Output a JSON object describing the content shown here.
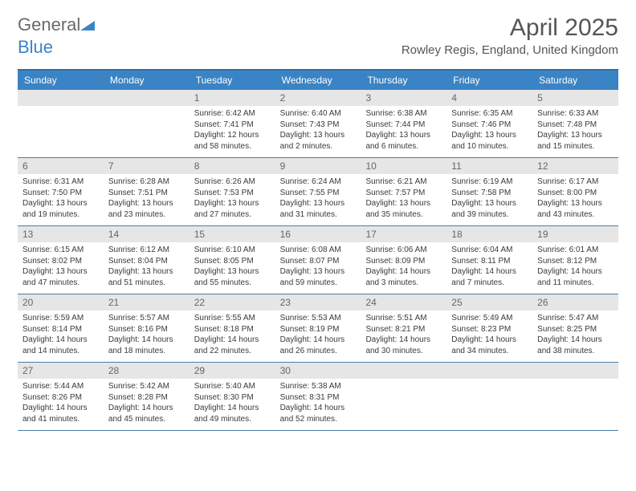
{
  "brand": {
    "part1": "General",
    "part2": "Blue"
  },
  "title": "April 2025",
  "location": "Rowley Regis, England, United Kingdom",
  "colors": {
    "header_bg": "#3a83c4",
    "header_text": "#ffffff",
    "border": "#2d6ea8",
    "daynum_bg": "#e6e6e6",
    "daynum_text": "#666666",
    "body_text": "#3a3a3a",
    "title_text": "#555555"
  },
  "days_of_week": [
    "Sunday",
    "Monday",
    "Tuesday",
    "Wednesday",
    "Thursday",
    "Friday",
    "Saturday"
  ],
  "weeks": [
    [
      null,
      null,
      {
        "n": "1",
        "sr": "Sunrise: 6:42 AM",
        "ss": "Sunset: 7:41 PM",
        "dl": "Daylight: 12 hours and 58 minutes."
      },
      {
        "n": "2",
        "sr": "Sunrise: 6:40 AM",
        "ss": "Sunset: 7:43 PM",
        "dl": "Daylight: 13 hours and 2 minutes."
      },
      {
        "n": "3",
        "sr": "Sunrise: 6:38 AM",
        "ss": "Sunset: 7:44 PM",
        "dl": "Daylight: 13 hours and 6 minutes."
      },
      {
        "n": "4",
        "sr": "Sunrise: 6:35 AM",
        "ss": "Sunset: 7:46 PM",
        "dl": "Daylight: 13 hours and 10 minutes."
      },
      {
        "n": "5",
        "sr": "Sunrise: 6:33 AM",
        "ss": "Sunset: 7:48 PM",
        "dl": "Daylight: 13 hours and 15 minutes."
      }
    ],
    [
      {
        "n": "6",
        "sr": "Sunrise: 6:31 AM",
        "ss": "Sunset: 7:50 PM",
        "dl": "Daylight: 13 hours and 19 minutes."
      },
      {
        "n": "7",
        "sr": "Sunrise: 6:28 AM",
        "ss": "Sunset: 7:51 PM",
        "dl": "Daylight: 13 hours and 23 minutes."
      },
      {
        "n": "8",
        "sr": "Sunrise: 6:26 AM",
        "ss": "Sunset: 7:53 PM",
        "dl": "Daylight: 13 hours and 27 minutes."
      },
      {
        "n": "9",
        "sr": "Sunrise: 6:24 AM",
        "ss": "Sunset: 7:55 PM",
        "dl": "Daylight: 13 hours and 31 minutes."
      },
      {
        "n": "10",
        "sr": "Sunrise: 6:21 AM",
        "ss": "Sunset: 7:57 PM",
        "dl": "Daylight: 13 hours and 35 minutes."
      },
      {
        "n": "11",
        "sr": "Sunrise: 6:19 AM",
        "ss": "Sunset: 7:58 PM",
        "dl": "Daylight: 13 hours and 39 minutes."
      },
      {
        "n": "12",
        "sr": "Sunrise: 6:17 AM",
        "ss": "Sunset: 8:00 PM",
        "dl": "Daylight: 13 hours and 43 minutes."
      }
    ],
    [
      {
        "n": "13",
        "sr": "Sunrise: 6:15 AM",
        "ss": "Sunset: 8:02 PM",
        "dl": "Daylight: 13 hours and 47 minutes."
      },
      {
        "n": "14",
        "sr": "Sunrise: 6:12 AM",
        "ss": "Sunset: 8:04 PM",
        "dl": "Daylight: 13 hours and 51 minutes."
      },
      {
        "n": "15",
        "sr": "Sunrise: 6:10 AM",
        "ss": "Sunset: 8:05 PM",
        "dl": "Daylight: 13 hours and 55 minutes."
      },
      {
        "n": "16",
        "sr": "Sunrise: 6:08 AM",
        "ss": "Sunset: 8:07 PM",
        "dl": "Daylight: 13 hours and 59 minutes."
      },
      {
        "n": "17",
        "sr": "Sunrise: 6:06 AM",
        "ss": "Sunset: 8:09 PM",
        "dl": "Daylight: 14 hours and 3 minutes."
      },
      {
        "n": "18",
        "sr": "Sunrise: 6:04 AM",
        "ss": "Sunset: 8:11 PM",
        "dl": "Daylight: 14 hours and 7 minutes."
      },
      {
        "n": "19",
        "sr": "Sunrise: 6:01 AM",
        "ss": "Sunset: 8:12 PM",
        "dl": "Daylight: 14 hours and 11 minutes."
      }
    ],
    [
      {
        "n": "20",
        "sr": "Sunrise: 5:59 AM",
        "ss": "Sunset: 8:14 PM",
        "dl": "Daylight: 14 hours and 14 minutes."
      },
      {
        "n": "21",
        "sr": "Sunrise: 5:57 AM",
        "ss": "Sunset: 8:16 PM",
        "dl": "Daylight: 14 hours and 18 minutes."
      },
      {
        "n": "22",
        "sr": "Sunrise: 5:55 AM",
        "ss": "Sunset: 8:18 PM",
        "dl": "Daylight: 14 hours and 22 minutes."
      },
      {
        "n": "23",
        "sr": "Sunrise: 5:53 AM",
        "ss": "Sunset: 8:19 PM",
        "dl": "Daylight: 14 hours and 26 minutes."
      },
      {
        "n": "24",
        "sr": "Sunrise: 5:51 AM",
        "ss": "Sunset: 8:21 PM",
        "dl": "Daylight: 14 hours and 30 minutes."
      },
      {
        "n": "25",
        "sr": "Sunrise: 5:49 AM",
        "ss": "Sunset: 8:23 PM",
        "dl": "Daylight: 14 hours and 34 minutes."
      },
      {
        "n": "26",
        "sr": "Sunrise: 5:47 AM",
        "ss": "Sunset: 8:25 PM",
        "dl": "Daylight: 14 hours and 38 minutes."
      }
    ],
    [
      {
        "n": "27",
        "sr": "Sunrise: 5:44 AM",
        "ss": "Sunset: 8:26 PM",
        "dl": "Daylight: 14 hours and 41 minutes."
      },
      {
        "n": "28",
        "sr": "Sunrise: 5:42 AM",
        "ss": "Sunset: 8:28 PM",
        "dl": "Daylight: 14 hours and 45 minutes."
      },
      {
        "n": "29",
        "sr": "Sunrise: 5:40 AM",
        "ss": "Sunset: 8:30 PM",
        "dl": "Daylight: 14 hours and 49 minutes."
      },
      {
        "n": "30",
        "sr": "Sunrise: 5:38 AM",
        "ss": "Sunset: 8:31 PM",
        "dl": "Daylight: 14 hours and 52 minutes."
      },
      null,
      null,
      null
    ]
  ]
}
